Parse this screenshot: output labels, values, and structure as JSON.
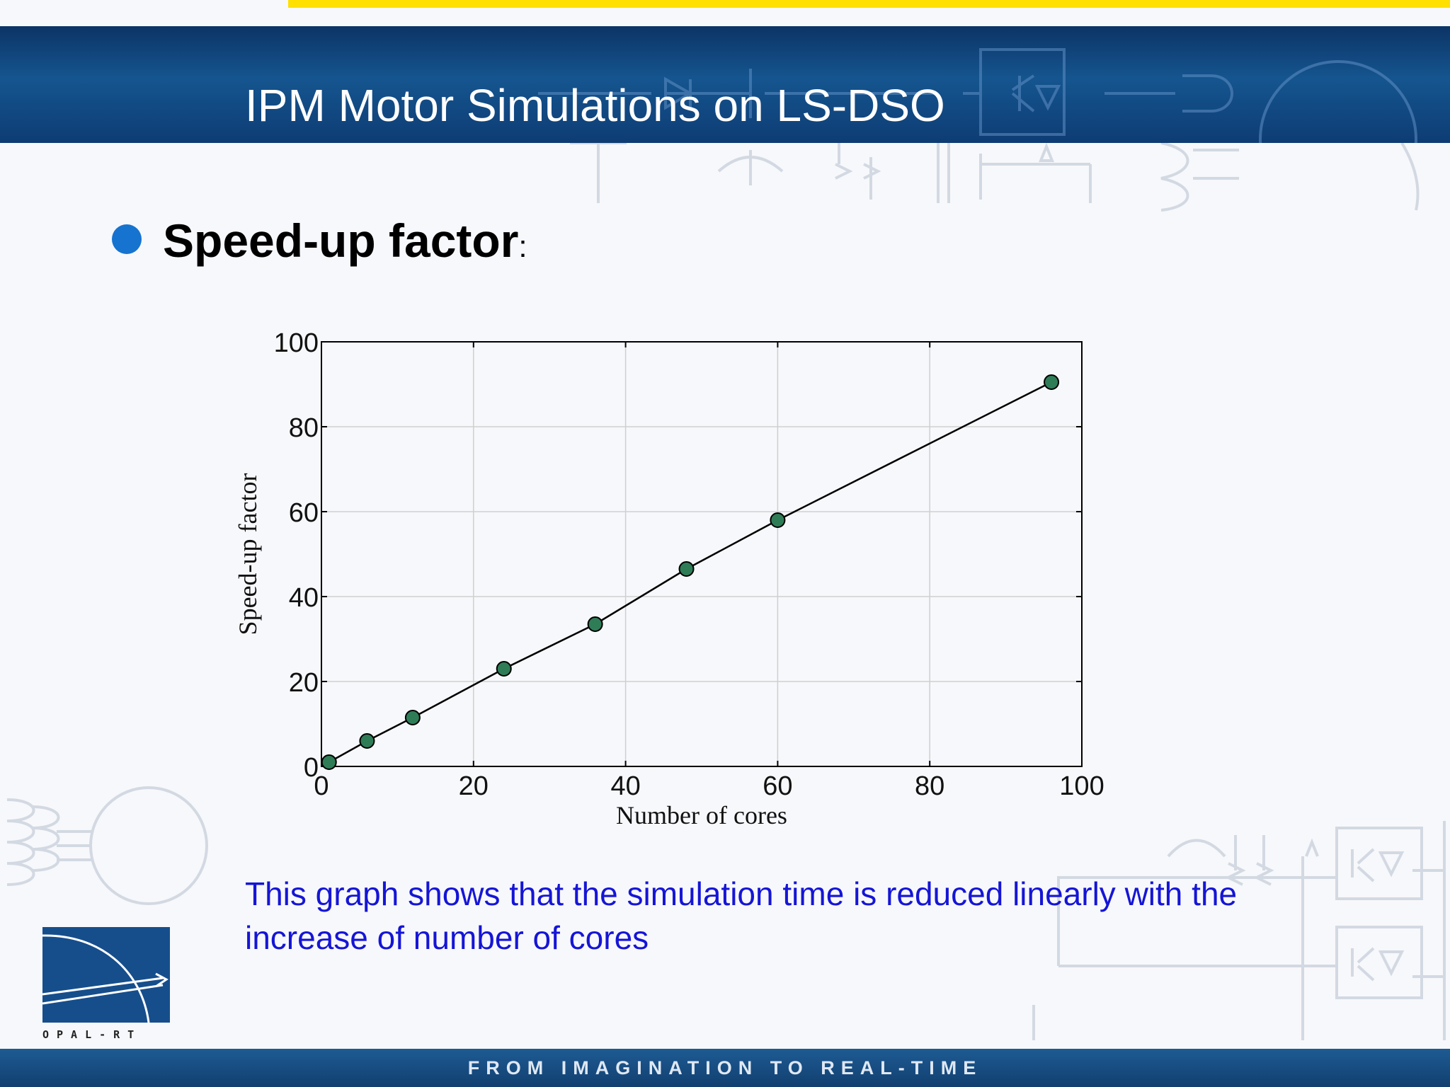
{
  "slide": {
    "title": "IPM Motor Simulations on LS-DSO",
    "bullet": {
      "label": "Speed-up factor",
      "colon": ":"
    },
    "caption": "This graph shows that the simulation time is reduced linearly with the increase of number of cores",
    "footer": "FROM IMAGINATION TO REAL-TIME",
    "logo": {
      "text": "OPAL-RT"
    }
  },
  "colors": {
    "accent_yellow": "#ffe000",
    "header_blue": "#15558f",
    "bullet_blue": "#1673d0",
    "caption_blue": "#1515d6",
    "marker_green": "#2e7d57",
    "line": "#000000"
  },
  "chart_data": {
    "type": "line",
    "title": "",
    "xlabel": "Number of cores",
    "ylabel": "Speed-up factor",
    "xlim": [
      0,
      100
    ],
    "ylim": [
      0,
      100
    ],
    "xticks": [
      0,
      20,
      40,
      60,
      80,
      100
    ],
    "yticks": [
      0,
      20,
      40,
      60,
      80,
      100
    ],
    "grid": true,
    "legend": "none",
    "series": [
      {
        "x": [
          1,
          6,
          12,
          24,
          36,
          48,
          60,
          96
        ],
        "y": [
          1,
          6,
          11.5,
          23,
          33.5,
          46.5,
          58,
          90.5
        ],
        "marker": "circle",
        "color": "#2e7d57"
      }
    ]
  }
}
